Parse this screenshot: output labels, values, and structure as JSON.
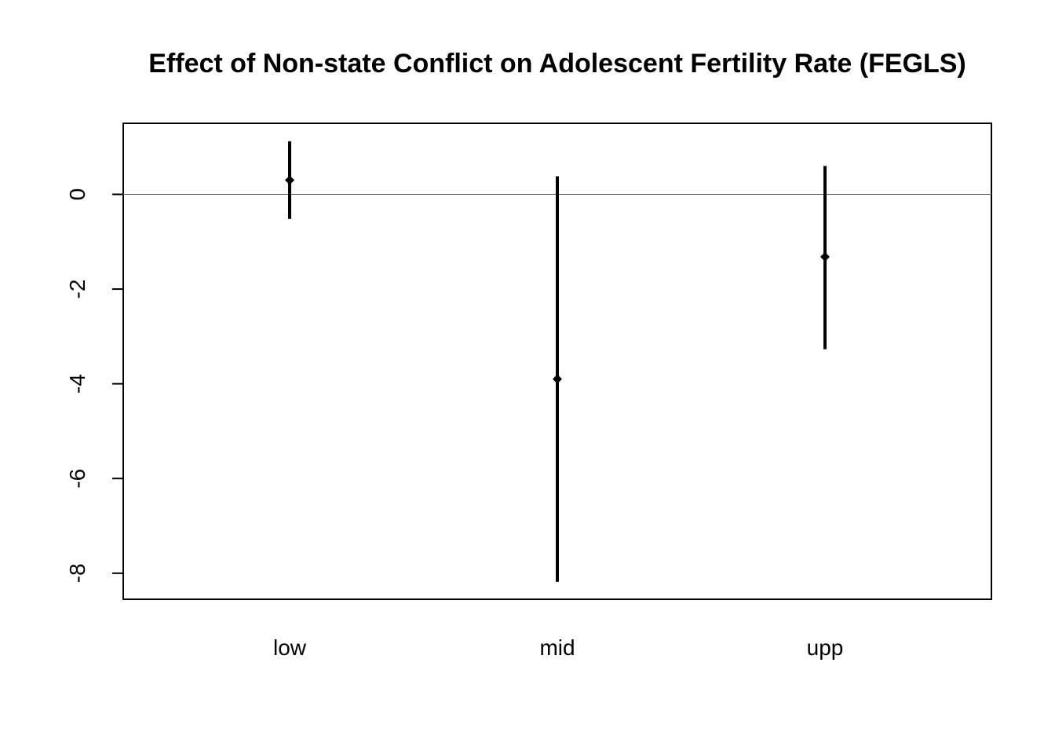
{
  "chart_data": {
    "type": "errorbar",
    "title": "Effect of Non-state Conflict on Adolescent Fertility Rate (FEGLS)",
    "xlabel": "",
    "ylabel": "",
    "categories": [
      "low",
      "mid",
      "upp"
    ],
    "estimates": [
      0.3,
      -3.9,
      -1.32
    ],
    "lower": [
      -0.52,
      -8.18,
      -3.27
    ],
    "upper": [
      1.12,
      0.38,
      0.6
    ],
    "yticks": [
      0,
      -2,
      -4,
      -6,
      -8
    ],
    "ylim": [
      -8.55,
      1.5
    ],
    "reference_line": 0,
    "grid": false,
    "legend": "none",
    "colors": {
      "marks": "#000000",
      "reference_line": "#666666",
      "frame": "#000000"
    }
  }
}
